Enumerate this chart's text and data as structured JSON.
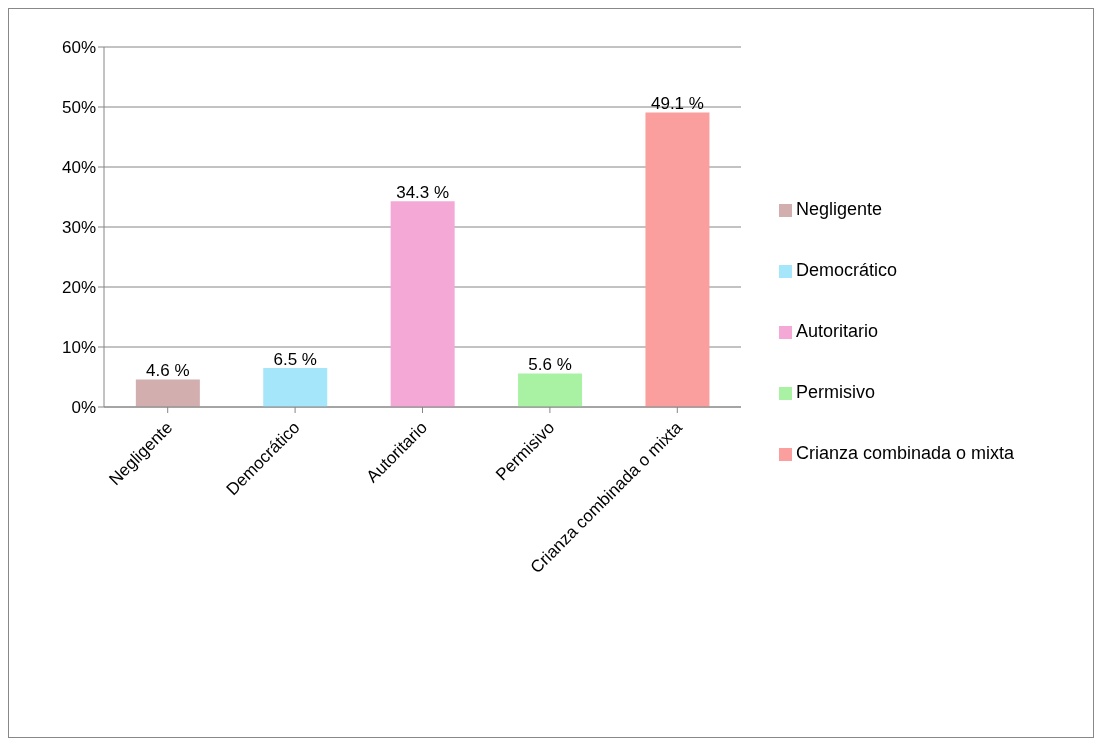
{
  "chart_data": {
    "type": "bar",
    "categories": [
      "Negligente",
      "Democrático",
      "Autoritario",
      "Permisivo",
      "Crianza combinada o mixta"
    ],
    "series": [
      {
        "name": "Negligente",
        "color": "#d2aeae",
        "values": [
          4.6,
          null,
          null,
          null,
          null
        ],
        "value_labels": [
          "4.6 %",
          null,
          null,
          null,
          null
        ]
      },
      {
        "name": "Democrático",
        "color": "#a6e6fb",
        "values": [
          null,
          6.5,
          null,
          null,
          null
        ],
        "value_labels": [
          null,
          "6.5 %",
          null,
          null,
          null
        ]
      },
      {
        "name": "Autoritario",
        "color": "#f3a8d6",
        "values": [
          null,
          null,
          34.3,
          null,
          null
        ],
        "value_labels": [
          null,
          null,
          "34.3 %",
          null,
          null
        ]
      },
      {
        "name": "Permisivo",
        "color": "#a9f2a4",
        "values": [
          null,
          null,
          null,
          5.6,
          null
        ],
        "value_labels": [
          null,
          null,
          null,
          "5.6 %",
          null
        ]
      },
      {
        "name": "Crianza combinada o mixta",
        "color": "#fb9e9e",
        "values": [
          null,
          null,
          null,
          null,
          49.1
        ],
        "value_labels": [
          null,
          null,
          null,
          null,
          "49.1 %"
        ]
      }
    ],
    "stacked": true,
    "ylim": [
      0,
      60
    ],
    "yticks": [
      {
        "value": 0,
        "label": "0%"
      },
      {
        "value": 10,
        "label": "10%"
      },
      {
        "value": 20,
        "label": "20%"
      },
      {
        "value": 30,
        "label": "30%"
      },
      {
        "value": 40,
        "label": "40%"
      },
      {
        "value": 50,
        "label": "50%"
      },
      {
        "value": 60,
        "label": "60%"
      }
    ],
    "grid": "y",
    "legend": "right"
  }
}
